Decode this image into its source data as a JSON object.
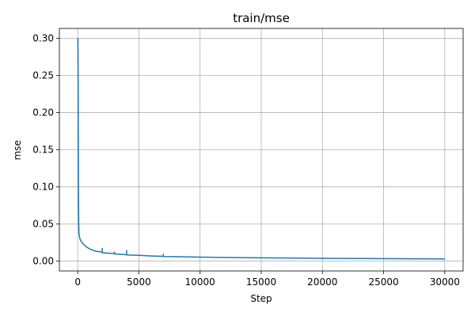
{
  "chart_data": {
    "type": "line",
    "title": "train/mse",
    "xlabel": "Step",
    "ylabel": "mse",
    "xlim": [
      -1500,
      31500
    ],
    "ylim": [
      -0.0135,
      0.3135
    ],
    "xticks": [
      0,
      5000,
      10000,
      15000,
      20000,
      25000,
      30000
    ],
    "xtick_labels": [
      "0",
      "5000",
      "10000",
      "15000",
      "20000",
      "25000",
      "30000"
    ],
    "yticks": [
      0.0,
      0.05,
      0.1,
      0.15,
      0.2,
      0.25,
      0.3
    ],
    "ytick_labels": [
      "0.00",
      "0.05",
      "0.10",
      "0.15",
      "0.20",
      "0.25",
      "0.30"
    ],
    "grid": true,
    "series": [
      {
        "color": "#1f77b4",
        "x": [
          0,
          20,
          40,
          60,
          80,
          100,
          150,
          200,
          300,
          400,
          500,
          700,
          1000,
          1500,
          2000,
          2001,
          2002,
          2500,
          3000,
          3001,
          3002,
          3500,
          4000,
          4001,
          4002,
          5000,
          6000,
          7000,
          7001,
          7002,
          8000,
          10000,
          12000,
          15000,
          20000,
          25000,
          30000
        ],
        "y": [
          0.295,
          0.3,
          0.22,
          0.1,
          0.05,
          0.037,
          0.032,
          0.029,
          0.026,
          0.024,
          0.022,
          0.019,
          0.016,
          0.013,
          0.012,
          0.017,
          0.011,
          0.0105,
          0.01,
          0.012,
          0.0095,
          0.009,
          0.0085,
          0.014,
          0.008,
          0.0075,
          0.0068,
          0.0062,
          0.009,
          0.006,
          0.0058,
          0.0052,
          0.0047,
          0.0042,
          0.0036,
          0.0031,
          0.0027
        ]
      }
    ]
  }
}
